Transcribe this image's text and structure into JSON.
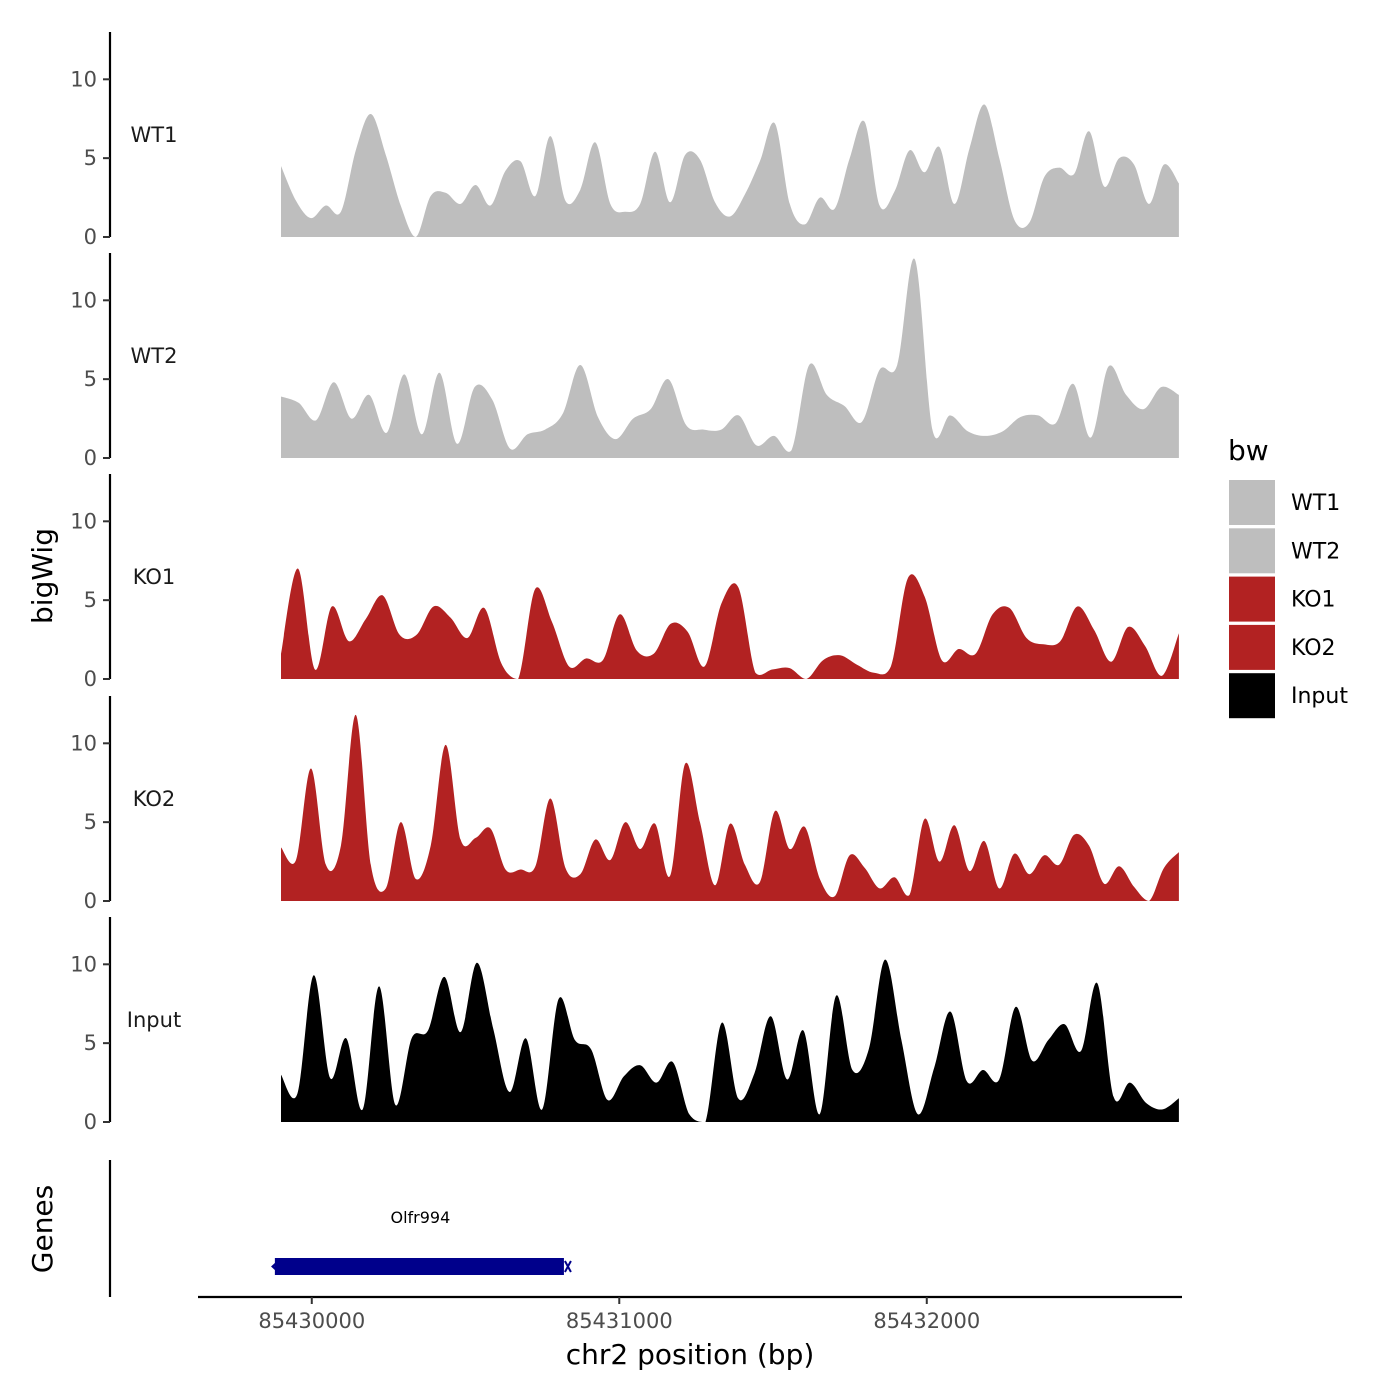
{
  "chart_data": {
    "type": "area",
    "title": "",
    "ylabel": "bigWig",
    "xlabel": "chr2 position (bp)",
    "genes_label": "Genes",
    "xlim": [
      85429630,
      85432830
    ],
    "ylim": [
      0,
      13
    ],
    "x_ticks": [
      85430000,
      85431000,
      85432000
    ],
    "x_tick_labels": [
      "85430000",
      "85431000",
      "85432000"
    ],
    "y_ticks": [
      0,
      5,
      10
    ],
    "y_tick_labels": [
      "0",
      "5",
      "10"
    ],
    "legend": {
      "title": "bw",
      "position": "right",
      "items": [
        {
          "label": "WT1",
          "color": "#bebebe"
        },
        {
          "label": "WT2",
          "color": "#bebebe"
        },
        {
          "label": "KO1",
          "color": "#b22222"
        },
        {
          "label": "KO2",
          "color": "#b22222"
        },
        {
          "label": "Input",
          "color": "#000000"
        }
      ]
    },
    "track_x": {
      "start": 85429900,
      "end": 85432820,
      "step": 73
    },
    "series": [
      {
        "name": "WT1",
        "color": "#bebebe",
        "values": [
          4.5,
          2.3,
          1.2,
          2.0,
          1.6,
          5.5,
          7.8,
          5.2,
          2.0,
          0.0,
          2.6,
          2.8,
          2.1,
          3.3,
          2.0,
          4.2,
          4.8,
          2.6,
          6.4,
          2.3,
          3.0,
          6.0,
          2.1,
          1.6,
          2.1,
          5.4,
          2.2,
          5.2,
          4.9,
          2.2,
          1.3,
          2.7,
          4.8,
          7.2,
          2.1,
          0.8,
          2.5,
          1.8,
          5.0,
          7.3,
          2.0,
          2.9,
          5.5,
          4.1,
          5.7,
          2.1,
          5.6,
          8.4,
          5.0,
          1.1,
          0.9,
          3.8,
          4.4,
          4.0,
          6.7,
          3.2,
          5.0,
          4.6,
          2.1,
          4.6,
          3.4
        ]
      },
      {
        "name": "WT2",
        "color": "#bebebe",
        "values": [
          3.9,
          3.5,
          2.4,
          4.8,
          2.5,
          4.0,
          1.6,
          5.3,
          1.5,
          5.4,
          0.9,
          4.5,
          3.7,
          0.6,
          1.5,
          1.8,
          2.8,
          5.9,
          2.6,
          1.2,
          2.5,
          3.1,
          5.0,
          2.1,
          1.8,
          1.8,
          2.7,
          0.8,
          1.4,
          0.5,
          5.9,
          4.0,
          3.3,
          2.3,
          5.6,
          5.9,
          12.6,
          1.8,
          2.7,
          1.7,
          1.4,
          1.7,
          2.6,
          2.7,
          2.2,
          4.7,
          1.3,
          5.8,
          4.0,
          3.1,
          4.5,
          4.0
        ]
      },
      {
        "name": "KO1",
        "color": "#b22222",
        "values": [
          1.6,
          7.0,
          0.6,
          4.6,
          2.4,
          3.8,
          5.3,
          2.8,
          2.8,
          4.6,
          3.9,
          2.6,
          4.5,
          1.0,
          0.0,
          5.7,
          3.6,
          0.8,
          1.3,
          1.2,
          4.1,
          1.8,
          1.6,
          3.5,
          3.0,
          0.8,
          4.8,
          5.8,
          0.4,
          0.6,
          0.7,
          0.0,
          1.2,
          1.5,
          0.9,
          0.4,
          0.8,
          6.4,
          5.2,
          1.2,
          1.9,
          1.6,
          4.1,
          4.5,
          2.6,
          2.2,
          2.4,
          4.6,
          3.1,
          1.1,
          3.3,
          2.1,
          0.2,
          2.9
        ]
      },
      {
        "name": "KO2",
        "color": "#b22222",
        "values": [
          3.4,
          2.6,
          8.4,
          2.3,
          3.5,
          11.8,
          2.3,
          0.8,
          5.0,
          1.4,
          3.5,
          9.9,
          3.9,
          4.0,
          4.6,
          2.0,
          2.0,
          2.2,
          6.5,
          2.1,
          1.7,
          3.9,
          2.6,
          5.0,
          3.3,
          4.9,
          1.6,
          8.7,
          5.0,
          1.0,
          4.9,
          2.3,
          1.2,
          5.7,
          3.3,
          4.7,
          1.4,
          0.3,
          2.9,
          2.1,
          0.8,
          1.5,
          0.4,
          5.2,
          2.5,
          4.8,
          1.9,
          3.8,
          0.8,
          3.0,
          1.7,
          2.9,
          2.3,
          4.2,
          3.5,
          1.1,
          2.2,
          0.9,
          0.0,
          2.1,
          3.1
        ]
      },
      {
        "name": "Input",
        "color": "#000000",
        "values": [
          3.0,
          1.8,
          9.3,
          2.8,
          5.3,
          0.8,
          8.6,
          1.1,
          5.3,
          5.8,
          9.2,
          5.7,
          10.1,
          5.9,
          1.9,
          5.3,
          0.8,
          7.8,
          5.2,
          4.6,
          1.4,
          2.9,
          3.6,
          2.5,
          3.8,
          0.5,
          0.0,
          6.3,
          1.5,
          3.1,
          6.7,
          2.7,
          5.8,
          0.5,
          8.0,
          3.3,
          4.6,
          10.3,
          5.2,
          0.5,
          3.4,
          7.0,
          2.6,
          3.3,
          2.7,
          7.3,
          3.9,
          5.2,
          6.2,
          4.5,
          8.8,
          1.6,
          2.5,
          1.2,
          0.8,
          1.5
        ]
      }
    ],
    "genes": [
      {
        "name": "Olfr994",
        "start": 85429880,
        "end": 85430820,
        "strand": "-",
        "color": "#00008b"
      }
    ]
  }
}
